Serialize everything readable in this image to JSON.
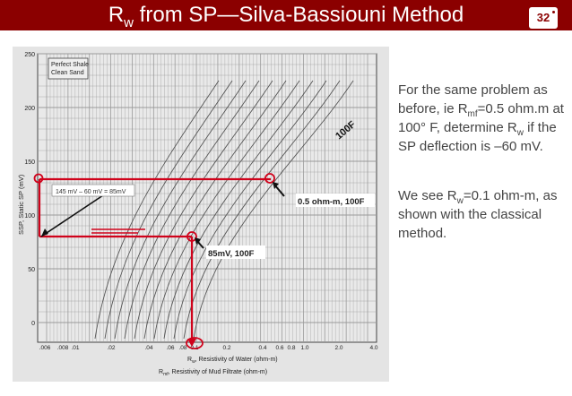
{
  "slide": {
    "title_main": "R",
    "title_sub": "w",
    "title_rest": " from SP—Silva-Bassiouni Method",
    "number": "32"
  },
  "chart": {
    "y_ticks": [
      "250",
      "200",
      "150",
      "100",
      "50",
      "0"
    ],
    "y_label": "SSP, Static SP (mV)",
    "x_ticks": [
      ".006",
      ".008",
      ".01",
      ".02",
      ".04",
      ".06",
      ".08",
      "0.1",
      "0.2",
      "0.4",
      "0.6",
      "0.8",
      "1.0",
      "2.0",
      "4.0"
    ],
    "x_label_1": "R",
    "x_label_1_sub": "w",
    "x_label_1_rest": ", Resistivity of Water (ohm-m)",
    "x_label_2": "R",
    "x_label_2_sub": "mf",
    "x_label_2_rest": ", Resistivity of Mud Filtrate (ohm-m)",
    "legend_line_1": "Perfect Shale",
    "legend_line_2": "Clean Sand",
    "annotations": {
      "deflection": "145 mV – 60 mV = 85mV",
      "point_upper": "0.5 ohm-m, 100F",
      "point_lower": "85mV, 100F",
      "temperature": "100F"
    },
    "colors": {
      "annotation_red": "#d0021b",
      "curve": "#555555",
      "grid": "#9a9a9a"
    }
  },
  "text": {
    "p1_a": "For the same problem as before, ie R",
    "p1_sub": "mf",
    "p1_b": "=0.5 ohm.m at 100° F, determine R",
    "p1_sub2": "w",
    "p1_c": " if the SP deflection is –60 mV.",
    "p2_a": "We see R",
    "p2_sub": "w",
    "p2_b": "=0.1 ohm-m, as shown with the classical method."
  }
}
